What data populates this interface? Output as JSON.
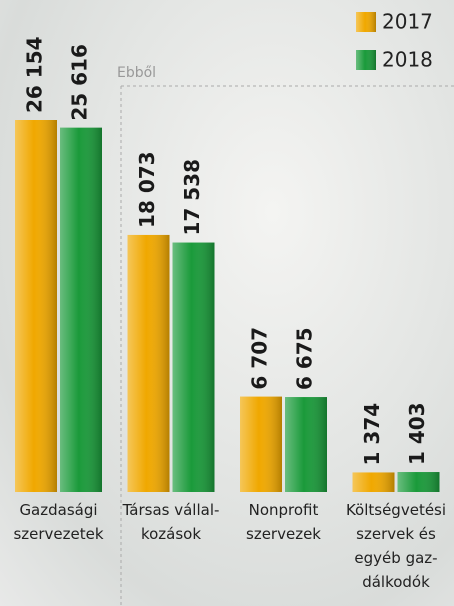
{
  "chart_data": {
    "type": "bar",
    "annotation": "Ebből",
    "categories": [
      "Gazdasági\nszervezetek",
      "Társas vállal-\nkozások",
      "Nonprofit\nszervezek",
      "Költségvetési\nszervek és\negyéb gaz-\ndálkodók"
    ],
    "series": [
      {
        "name": "2017",
        "color": "#f0a800",
        "values": [
          26154,
          18073,
          6707,
          1374
        ],
        "value_labels": [
          "26 154",
          "18 073",
          "6 707",
          "1 374"
        ]
      },
      {
        "name": "2018",
        "color": "#1a9a3a",
        "values": [
          25616,
          17538,
          6675,
          1403
        ],
        "value_labels": [
          "25 616",
          "17 538",
          "6 675",
          "1 403"
        ]
      }
    ],
    "legend": "top-right"
  }
}
